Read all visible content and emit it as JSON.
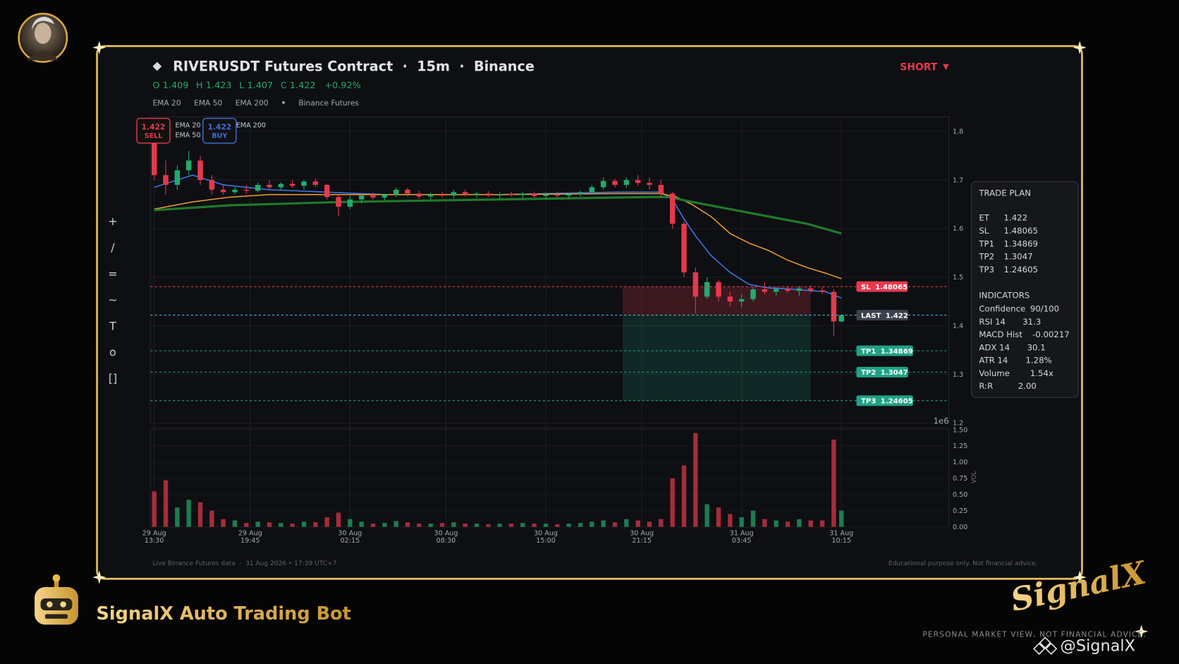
{
  "header": {
    "title": "RIVERUSDT Futures Contract  ·  15m  ·  Binance",
    "signal": "SHORT",
    "ohlc": [
      {
        "label": "O",
        "value": 1.409
      },
      {
        "label": "H",
        "value": 1.423
      },
      {
        "label": "L",
        "value": 1.407
      },
      {
        "label": "C",
        "value": 1.422
      }
    ],
    "change": "+0.92%",
    "source": "Binance Futures"
  },
  "toolbar": [
    "+",
    "/",
    "=",
    "~",
    "T",
    "o",
    "[]"
  ],
  "chart_data": [
    {
      "type": "candlestick",
      "xlim": [
        -1,
        207
      ],
      "ylim": [
        1.2,
        1.83
      ],
      "yticks": [
        1.2,
        1.3,
        1.4,
        1.5,
        1.6,
        1.7,
        1.8
      ],
      "grid": true,
      "up_color": "#22ab6e",
      "down_color": "#e5394d",
      "x": [
        0,
        3,
        6,
        9,
        12,
        15,
        18,
        21,
        24,
        27,
        30,
        33,
        36,
        39,
        42,
        45,
        48,
        51,
        54,
        57,
        60,
        63,
        66,
        69,
        72,
        75,
        78,
        81,
        84,
        87,
        90,
        93,
        96,
        99,
        102,
        105,
        108,
        111,
        114,
        117,
        120,
        123,
        126,
        129,
        132,
        135,
        138,
        141,
        144,
        147,
        150,
        153,
        156,
        159,
        162,
        165,
        168,
        171,
        174,
        177,
        179
      ],
      "open": [
        1.78,
        1.71,
        1.69,
        1.72,
        1.74,
        1.7,
        1.68,
        1.675,
        1.68,
        1.678,
        1.69,
        1.685,
        1.692,
        1.688,
        1.697,
        1.69,
        1.665,
        1.645,
        1.66,
        1.668,
        1.664,
        1.67,
        1.68,
        1.672,
        1.666,
        1.67,
        1.668,
        1.675,
        1.67,
        1.672,
        1.668,
        1.671,
        1.669,
        1.672,
        1.667,
        1.67,
        1.668,
        1.671,
        1.675,
        1.685,
        1.698,
        1.69,
        1.7,
        1.694,
        1.69,
        1.672,
        1.61,
        1.51,
        1.46,
        1.49,
        1.46,
        1.45,
        1.455,
        1.475,
        1.47,
        1.476,
        1.472,
        1.477,
        1.473,
        1.47,
        1.409
      ],
      "high": [
        1.79,
        1.74,
        1.73,
        1.76,
        1.75,
        1.71,
        1.69,
        1.685,
        1.69,
        1.695,
        1.7,
        1.695,
        1.7,
        1.7,
        1.703,
        1.692,
        1.67,
        1.668,
        1.672,
        1.674,
        1.672,
        1.685,
        1.684,
        1.678,
        1.674,
        1.676,
        1.68,
        1.68,
        1.676,
        1.677,
        1.675,
        1.676,
        1.675,
        1.676,
        1.674,
        1.675,
        1.674,
        1.678,
        1.69,
        1.705,
        1.703,
        1.705,
        1.71,
        1.705,
        1.7,
        1.675,
        1.615,
        1.52,
        1.5,
        1.495,
        1.47,
        1.465,
        1.48,
        1.49,
        1.48,
        1.482,
        1.482,
        1.484,
        1.48,
        1.475,
        1.423
      ],
      "low": [
        1.7,
        1.67,
        1.68,
        1.71,
        1.69,
        1.67,
        1.67,
        1.67,
        1.672,
        1.674,
        1.68,
        1.678,
        1.684,
        1.68,
        1.685,
        1.66,
        1.625,
        1.64,
        1.652,
        1.66,
        1.658,
        1.665,
        1.666,
        1.662,
        1.66,
        1.664,
        1.662,
        1.666,
        1.664,
        1.665,
        1.662,
        1.666,
        1.662,
        1.664,
        1.66,
        1.664,
        1.662,
        1.666,
        1.67,
        1.68,
        1.685,
        1.684,
        1.688,
        1.68,
        1.665,
        1.6,
        1.5,
        1.425,
        1.455,
        1.45,
        1.44,
        1.438,
        1.45,
        1.465,
        1.462,
        1.468,
        1.462,
        1.468,
        1.465,
        1.38,
        1.407
      ],
      "close": [
        1.71,
        1.69,
        1.72,
        1.74,
        1.7,
        1.68,
        1.675,
        1.68,
        1.678,
        1.69,
        1.685,
        1.692,
        1.688,
        1.697,
        1.69,
        1.665,
        1.645,
        1.66,
        1.668,
        1.664,
        1.67,
        1.68,
        1.672,
        1.666,
        1.67,
        1.668,
        1.675,
        1.67,
        1.672,
        1.668,
        1.671,
        1.669,
        1.672,
        1.667,
        1.67,
        1.668,
        1.671,
        1.675,
        1.685,
        1.698,
        1.69,
        1.7,
        1.694,
        1.69,
        1.672,
        1.61,
        1.51,
        1.46,
        1.49,
        1.46,
        1.45,
        1.455,
        1.475,
        1.47,
        1.476,
        1.472,
        1.477,
        1.473,
        1.47,
        1.409,
        1.422
      ],
      "ema": [
        {
          "name": "EMA 20",
          "color": "#3d7bf0",
          "x": [
            0,
            6,
            10,
            18,
            30,
            45,
            60,
            90,
            120,
            132,
            135,
            138,
            141,
            145,
            150,
            155,
            160,
            165,
            170,
            175,
            179
          ],
          "values": [
            1.685,
            1.7,
            1.71,
            1.69,
            1.68,
            1.675,
            1.67,
            1.67,
            1.675,
            1.675,
            1.66,
            1.62,
            1.585,
            1.545,
            1.51,
            1.485,
            1.478,
            1.476,
            1.473,
            1.47,
            1.457
          ]
        },
        {
          "name": "EMA 50",
          "color": "#f0a030",
          "x": [
            0,
            10,
            20,
            30,
            60,
            90,
            120,
            132,
            136,
            140,
            145,
            150,
            155,
            160,
            165,
            170,
            175,
            179
          ],
          "values": [
            1.64,
            1.655,
            1.665,
            1.67,
            1.67,
            1.67,
            1.672,
            1.672,
            1.665,
            1.65,
            1.625,
            1.59,
            1.57,
            1.555,
            1.535,
            1.52,
            1.508,
            1.497
          ]
        },
        {
          "name": "EMA 200",
          "color": "#1f7a2a",
          "x": [
            0,
            20,
            50,
            90,
            130,
            134,
            140,
            150,
            160,
            170,
            179
          ],
          "values": [
            1.638,
            1.648,
            1.655,
            1.66,
            1.665,
            1.665,
            1.655,
            1.64,
            1.625,
            1.61,
            1.59
          ]
        }
      ],
      "levels": [
        {
          "name": "SL",
          "value": 1.48065,
          "color": "#e5394d",
          "box_color": "#e5394d"
        },
        {
          "name": "LAST",
          "value": 1.422,
          "color": "#4fb3d9",
          "box_color": "#3c424b"
        },
        {
          "name": "TP1",
          "value": 1.34869,
          "color": "#1fa385",
          "box_color": "#1fa385"
        },
        {
          "name": "TP2",
          "value": 1.3047,
          "color": "#1fa385",
          "box_color": "#1fa385"
        },
        {
          "name": "TP3",
          "value": 1.24605,
          "color": "#1fa385",
          "box_color": "#1fa385"
        }
      ],
      "trade_box": [
        122,
        171
      ],
      "badges": [
        {
          "price": 1.422,
          "side": "SELL",
          "color": "#e5394d"
        },
        {
          "price": 1.422,
          "side": "BUY",
          "color": "#3f6fe0"
        }
      ]
    },
    {
      "type": "bar",
      "xlim": [
        -1,
        207
      ],
      "ylim": [
        0,
        1.5
      ],
      "ylabel": "VOL",
      "offset_label": "1e6",
      "yticks": [
        {
          "value": 0,
          "label": "0.00"
        },
        {
          "value": 0.25,
          "label": "0.25"
        },
        {
          "value": 0.5,
          "label": "0.50"
        },
        {
          "value": 0.75,
          "label": "0.75"
        },
        {
          "value": 1,
          "label": "1.00"
        },
        {
          "value": 1.25,
          "label": "1.25"
        },
        {
          "value": 1.5,
          "label": "1.50"
        }
      ],
      "xticks": [
        {
          "value": 0,
          "date": "29 Aug",
          "label": "13:30"
        },
        {
          "value": 25,
          "date": "29 Aug",
          "label": "19:45"
        },
        {
          "value": 51,
          "date": "30 Aug",
          "label": "02:15"
        },
        {
          "value": 76,
          "date": "30 Aug",
          "label": "08:30"
        },
        {
          "value": 102,
          "date": "30 Aug",
          "label": "15:00"
        },
        {
          "value": 127,
          "date": "30 Aug",
          "label": "21:15"
        },
        {
          "value": 153,
          "date": "31 Aug",
          "label": "03:45"
        },
        {
          "value": 179,
          "date": "31 Aug",
          "label": "10:15"
        }
      ],
      "x": [
        0,
        3,
        6,
        9,
        12,
        15,
        18,
        21,
        24,
        27,
        30,
        33,
        36,
        39,
        42,
        45,
        48,
        51,
        54,
        57,
        60,
        63,
        66,
        69,
        72,
        75,
        78,
        81,
        84,
        87,
        90,
        93,
        96,
        99,
        102,
        105,
        108,
        111,
        114,
        117,
        120,
        123,
        126,
        129,
        132,
        135,
        138,
        141,
        144,
        147,
        150,
        153,
        156,
        159,
        162,
        165,
        168,
        171,
        174,
        177,
        179
      ],
      "values": [
        0.55,
        0.72,
        0.3,
        0.42,
        0.38,
        0.25,
        0.12,
        0.1,
        0.06,
        0.08,
        0.07,
        0.06,
        0.05,
        0.08,
        0.07,
        0.15,
        0.22,
        0.12,
        0.08,
        0.05,
        0.06,
        0.09,
        0.07,
        0.05,
        0.05,
        0.06,
        0.07,
        0.05,
        0.05,
        0.04,
        0.05,
        0.05,
        0.06,
        0.05,
        0.05,
        0.04,
        0.05,
        0.06,
        0.08,
        0.1,
        0.07,
        0.12,
        0.1,
        0.08,
        0.12,
        0.75,
        0.95,
        1.45,
        0.35,
        0.3,
        0.2,
        0.15,
        0.25,
        0.12,
        0.1,
        0.08,
        0.12,
        0.1,
        0.1,
        1.35,
        0.25
      ]
    }
  ],
  "trade_plan": {
    "title": "TRADE PLAN",
    "rows": [
      {
        "label": "ET",
        "value": 1.422
      },
      {
        "label": "SL",
        "value": 1.48065
      },
      {
        "label": "TP1",
        "value": 1.34869
      },
      {
        "label": "TP2",
        "value": 1.3047
      },
      {
        "label": "TP3",
        "value": 1.24605
      }
    ],
    "indicators_title": "INDICATORS",
    "indicators": [
      {
        "label": "Confidence",
        "value": "90/100"
      },
      {
        "label": "RSI 14",
        "value": 31.3
      },
      {
        "label": "MACD Hist",
        "value": -0.00217
      },
      {
        "label": "ADX 14",
        "value": 30.1
      },
      {
        "label": "ATR 14",
        "value": "1.28%"
      },
      {
        "label": "Volume",
        "value": "1.54x"
      },
      {
        "label": "R:R",
        "value": "2.00"
      }
    ]
  },
  "footer": {
    "left": "Live Binance Futures data  ·  31 Aug 2026 • 17:39 UTC+7",
    "right": "Educational purpose only. Not financial advice."
  },
  "branding": {
    "bot_name": "SignalX Auto Trading Bot",
    "logo": "SignalX",
    "disclaimer": "PERSONAL MARKET VIEW, NOT FINANCIAL ADVICE.",
    "handle": "@SignalX"
  }
}
